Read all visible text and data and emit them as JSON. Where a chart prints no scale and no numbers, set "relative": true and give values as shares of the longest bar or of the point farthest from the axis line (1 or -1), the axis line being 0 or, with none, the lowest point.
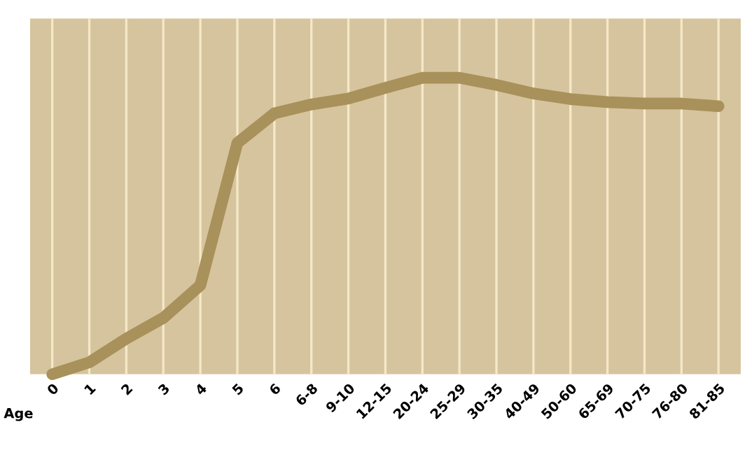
{
  "chart_data": {
    "type": "line",
    "relative": true,
    "xlabel": "Age",
    "categories": [
      "0",
      "1",
      "2",
      "3",
      "4",
      "5",
      "6",
      "6-8",
      "9-10",
      "12-15",
      "20-24",
      "25-29",
      "30-35",
      "40-49",
      "50-60",
      "65-69",
      "70-75",
      "76-80",
      "81-85"
    ],
    "series": [
      {
        "color": "#a8915a",
        "values": [
          0,
          0.04,
          0.12,
          0.19,
          0.3,
          0.78,
          0.88,
          0.91,
          0.93,
          0.966,
          1,
          1,
          0.976,
          0.947,
          0.928,
          0.918,
          0.913,
          0.913,
          0.904
        ]
      }
    ],
    "grid": "x",
    "legend": false,
    "marker": "none",
    "line_style": "solid"
  }
}
